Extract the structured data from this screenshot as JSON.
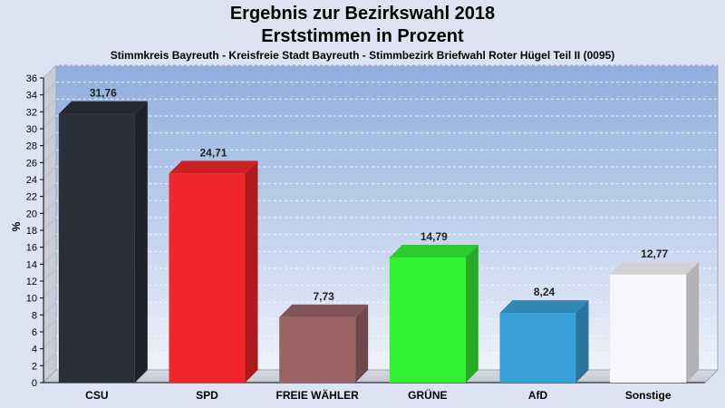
{
  "header": {
    "title_line1": "Ergebnis zur Bezirkswahl 2018",
    "title_line2": "Erststimmen in Prozent",
    "subtitle": "Stimmkreis Bayreuth - Kreisfreie Stadt Bayreuth - Stimmbezirk Briefwahl Roter Hügel Teil II (0095)"
  },
  "chart_data": {
    "type": "bar",
    "title": "Ergebnis zur Bezirkswahl 2018 – Erststimmen in Prozent",
    "subtitle": "Stimmkreis Bayreuth - Kreisfreie Stadt Bayreuth - Stimmbezirk Briefwahl Roter Hügel Teil II (0095)",
    "ylabel": "%",
    "xlabel": "",
    "ylim": [
      0,
      36
    ],
    "ytick_step": 2,
    "grid": true,
    "categories": [
      "CSU",
      "SPD",
      "FREIE WÄHLER",
      "GRÜNE",
      "AfD",
      "Sonstige"
    ],
    "values": [
      31.76,
      24.71,
      7.73,
      14.79,
      8.24,
      12.77
    ],
    "value_labels": [
      "31,76",
      "24,71",
      "7,73",
      "14,79",
      "8,24",
      "12,77"
    ],
    "colors": [
      "#2b2f38",
      "#f0262b",
      "#9a6465",
      "#32f032",
      "#3aa0d8",
      "#f7f7fb"
    ]
  }
}
